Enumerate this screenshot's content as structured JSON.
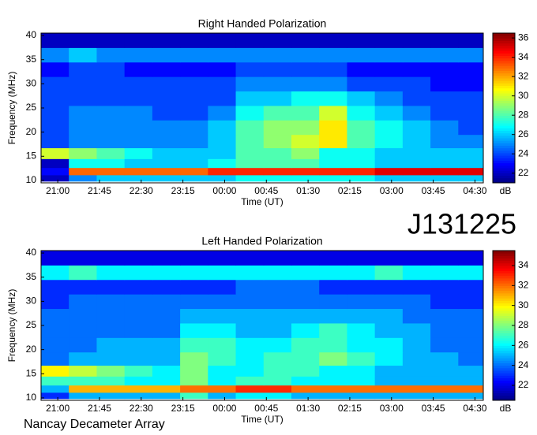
{
  "header_label": "J131225",
  "footer": "Nancay Decameter Array",
  "chart_data": [
    {
      "type": "heatmap",
      "title": "Right Handed Polarization",
      "xlabel": "Time (UT)",
      "ylabel": "Frequency (MHz)",
      "zlabel": "dB",
      "x": [
        20.95,
        21.45,
        21.95,
        22.45,
        22.95,
        23.45,
        23.95,
        24.45,
        24.95,
        25.45,
        25.95,
        26.45,
        26.95,
        27.45,
        27.95,
        28.45
      ],
      "y": [
        10.5,
        11.8,
        13.5,
        15.5,
        18,
        21,
        24,
        27,
        30,
        33,
        36,
        39
      ],
      "values": [
        [
          22,
          25,
          26,
          26,
          26,
          26,
          26,
          27,
          27,
          27,
          27,
          27,
          26,
          26,
          26,
          26
        ],
        [
          23,
          33,
          33,
          33,
          33,
          33,
          34,
          34,
          34,
          34,
          34,
          34,
          35,
          35,
          35,
          35
        ],
        [
          22,
          27,
          27,
          26,
          26,
          26,
          27,
          28,
          28,
          28,
          27,
          27,
          26,
          26,
          26,
          26
        ],
        [
          30,
          29,
          28,
          27,
          26,
          26,
          26,
          28,
          28,
          29,
          27,
          27,
          26,
          26,
          26,
          26
        ],
        [
          24,
          25,
          25,
          25,
          25,
          25,
          26,
          28,
          29,
          30,
          31,
          28,
          27,
          26,
          25,
          25
        ],
        [
          24,
          25,
          25,
          25,
          25,
          25,
          26,
          28,
          29,
          29,
          31,
          28,
          27,
          26,
          25,
          24
        ],
        [
          24,
          25,
          25,
          25,
          24,
          24,
          25,
          27,
          28,
          28,
          30,
          27,
          26,
          25,
          24,
          24
        ],
        [
          24,
          24,
          24,
          24,
          24,
          24,
          24,
          26,
          26,
          27,
          27,
          26,
          25,
          24,
          24,
          24
        ],
        [
          24,
          24,
          24,
          24,
          24,
          24,
          24,
          25,
          25,
          25,
          25,
          24,
          24,
          24,
          23,
          23
        ],
        [
          23,
          24,
          24,
          23,
          23,
          23,
          23,
          24,
          24,
          24,
          24,
          23,
          23,
          23,
          23,
          23
        ],
        [
          25,
          26,
          25,
          25,
          25,
          25,
          25,
          25,
          25,
          25,
          25,
          25,
          25,
          25,
          25,
          25
        ],
        [
          22,
          22,
          22,
          22,
          22,
          22,
          22,
          22,
          22,
          22,
          22,
          22,
          22,
          22,
          22,
          22
        ]
      ],
      "xlim": [
        20.7,
        28.65
      ],
      "ylim": [
        9.5,
        40.5
      ],
      "zlim": [
        21,
        36.5
      ],
      "xticks": [
        {
          "value": 21,
          "label": "21:00"
        },
        {
          "value": 21.75,
          "label": "21:45"
        },
        {
          "value": 22.5,
          "label": "22:30"
        },
        {
          "value": 23.25,
          "label": "23:15"
        },
        {
          "value": 24,
          "label": "00:00"
        },
        {
          "value": 24.75,
          "label": "00:45"
        },
        {
          "value": 25.5,
          "label": "01:30"
        },
        {
          "value": 26.25,
          "label": "02:15"
        },
        {
          "value": 27,
          "label": "03:00"
        },
        {
          "value": 27.75,
          "label": "03:45"
        },
        {
          "value": 28.5,
          "label": "04:30"
        }
      ],
      "yticks": [
        10,
        15,
        20,
        25,
        30,
        35,
        40
      ],
      "zticks": [
        22,
        24,
        26,
        28,
        30,
        32,
        34,
        36
      ]
    },
    {
      "type": "heatmap",
      "title": "Left Handed Polarization",
      "xlabel": "Time (UT)",
      "ylabel": "Frequency (MHz)",
      "zlabel": "dB",
      "x": [
        20.95,
        21.45,
        21.95,
        22.45,
        22.95,
        23.45,
        23.95,
        24.45,
        24.95,
        25.45,
        25.95,
        26.45,
        26.95,
        27.45,
        27.95,
        28.45
      ],
      "y": [
        10.5,
        11.8,
        13.5,
        15.5,
        18,
        21,
        24,
        27,
        30,
        33,
        36,
        39
      ],
      "values": [
        [
          23,
          25,
          25,
          25,
          25,
          27,
          25,
          26,
          26,
          25,
          25,
          25,
          25,
          25,
          25,
          25
        ],
        [
          25,
          31,
          31,
          31,
          31,
          32,
          32,
          33,
          33,
          32,
          32,
          32,
          32,
          32,
          32,
          32
        ],
        [
          27,
          27,
          27,
          26,
          26,
          28,
          26,
          27,
          27,
          26,
          26,
          26,
          25,
          25,
          25,
          25
        ],
        [
          30,
          29,
          28,
          27,
          26,
          28,
          26,
          26,
          27,
          27,
          26,
          26,
          25,
          25,
          25,
          25
        ],
        [
          24,
          25,
          25,
          25,
          25,
          28,
          27,
          26,
          27,
          27,
          28,
          27,
          26,
          25,
          25,
          24
        ],
        [
          24,
          24,
          25,
          25,
          25,
          27,
          27,
          26,
          26,
          27,
          27,
          26,
          26,
          25,
          24,
          24
        ],
        [
          24,
          24,
          24,
          24,
          24,
          26,
          26,
          25,
          25,
          26,
          27,
          26,
          25,
          25,
          24,
          24
        ],
        [
          24,
          24,
          24,
          24,
          24,
          25,
          25,
          25,
          25,
          25,
          25,
          25,
          25,
          24,
          24,
          24
        ],
        [
          23,
          24,
          24,
          24,
          24,
          24,
          24,
          24,
          24,
          24,
          24,
          24,
          24,
          24,
          23,
          23
        ],
        [
          23,
          23,
          23,
          23,
          23,
          23,
          23,
          24,
          24,
          24,
          23,
          23,
          23,
          23,
          23,
          23
        ],
        [
          26,
          27,
          26,
          26,
          26,
          26,
          26,
          26,
          26,
          26,
          26,
          26,
          27,
          26,
          26,
          26
        ],
        [
          22,
          22,
          22,
          22,
          22,
          22,
          22,
          22,
          22,
          22,
          22,
          22,
          22,
          22,
          22,
          22
        ]
      ],
      "xlim": [
        20.7,
        28.65
      ],
      "ylim": [
        9.5,
        40.5
      ],
      "zlim": [
        20.5,
        35.5
      ],
      "xticks": [
        {
          "value": 21,
          "label": "21:00"
        },
        {
          "value": 21.75,
          "label": "21:45"
        },
        {
          "value": 22.5,
          "label": "22:30"
        },
        {
          "value": 23.25,
          "label": "23:15"
        },
        {
          "value": 24,
          "label": "00:00"
        },
        {
          "value": 24.75,
          "label": "00:45"
        },
        {
          "value": 25.5,
          "label": "01:30"
        },
        {
          "value": 26.25,
          "label": "02:15"
        },
        {
          "value": 27,
          "label": "03:00"
        },
        {
          "value": 27.75,
          "label": "03:45"
        },
        {
          "value": 28.5,
          "label": "04:30"
        }
      ],
      "yticks": [
        10,
        15,
        20,
        25,
        30,
        35,
        40
      ],
      "zticks": [
        22,
        24,
        26,
        28,
        30,
        32,
        34
      ]
    }
  ]
}
